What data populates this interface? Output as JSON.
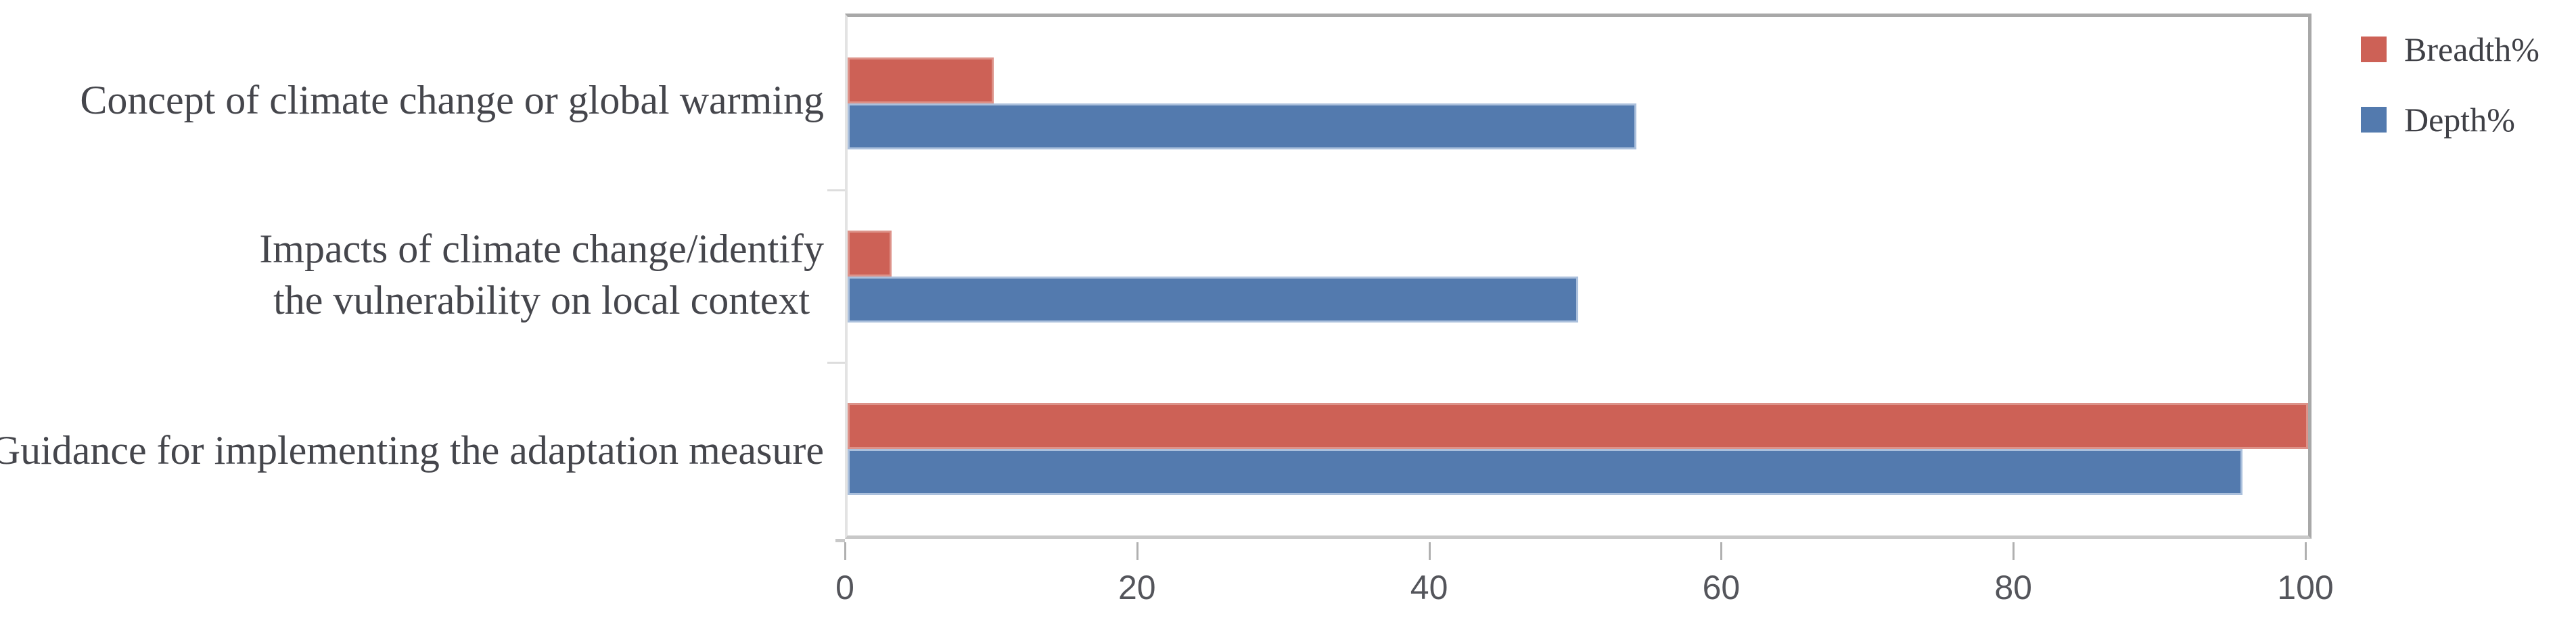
{
  "chart_data": {
    "type": "bar",
    "orientation": "horizontal",
    "title": "",
    "categories": [
      "Concept of climate change or global warming",
      "Impacts of climate change/identify the vulnerability on local context",
      "Guidance for implementing the adaptation measure"
    ],
    "series": [
      {
        "name": "Breadth%",
        "values": [
          10,
          3,
          100
        ],
        "color": "#cd6156",
        "edge_color": "#dd9289"
      },
      {
        "name": "Depth%",
        "values": [
          54,
          50,
          95.5
        ],
        "color": "#537aae",
        "edge_color": "#abc0dc"
      }
    ],
    "bar_order_top_to_bottom": [
      "Breadth%",
      "Depth%"
    ],
    "xlim": [
      0,
      100
    ],
    "x_ticks": [
      0,
      20,
      40,
      60,
      80,
      100
    ],
    "grid": false,
    "legend_position": "top-right"
  },
  "category_labels": {
    "row1_line1": "Concept of climate change or global warming",
    "row2_line1": "Impacts of climate change/identify",
    "row2_line2": "the vulnerability on local context",
    "row3_line1": "Guidance for implementing the adaptation measure"
  },
  "legend": {
    "items": [
      {
        "label": "Breadth%",
        "color": "#cd6156"
      },
      {
        "label": "Depth%",
        "color": "#537aae"
      }
    ]
  },
  "axis": {
    "tick_labels": [
      "0",
      "20",
      "40",
      "60",
      "80",
      "100"
    ]
  },
  "colors": {
    "plot_border": "#a8a8a8",
    "axis_line": "#c8c8c8",
    "left_axis_line": "#e3e3e3",
    "tick_mark": "#b0b0b0",
    "tick_text": "#54555b",
    "label_text": "#45464c"
  }
}
